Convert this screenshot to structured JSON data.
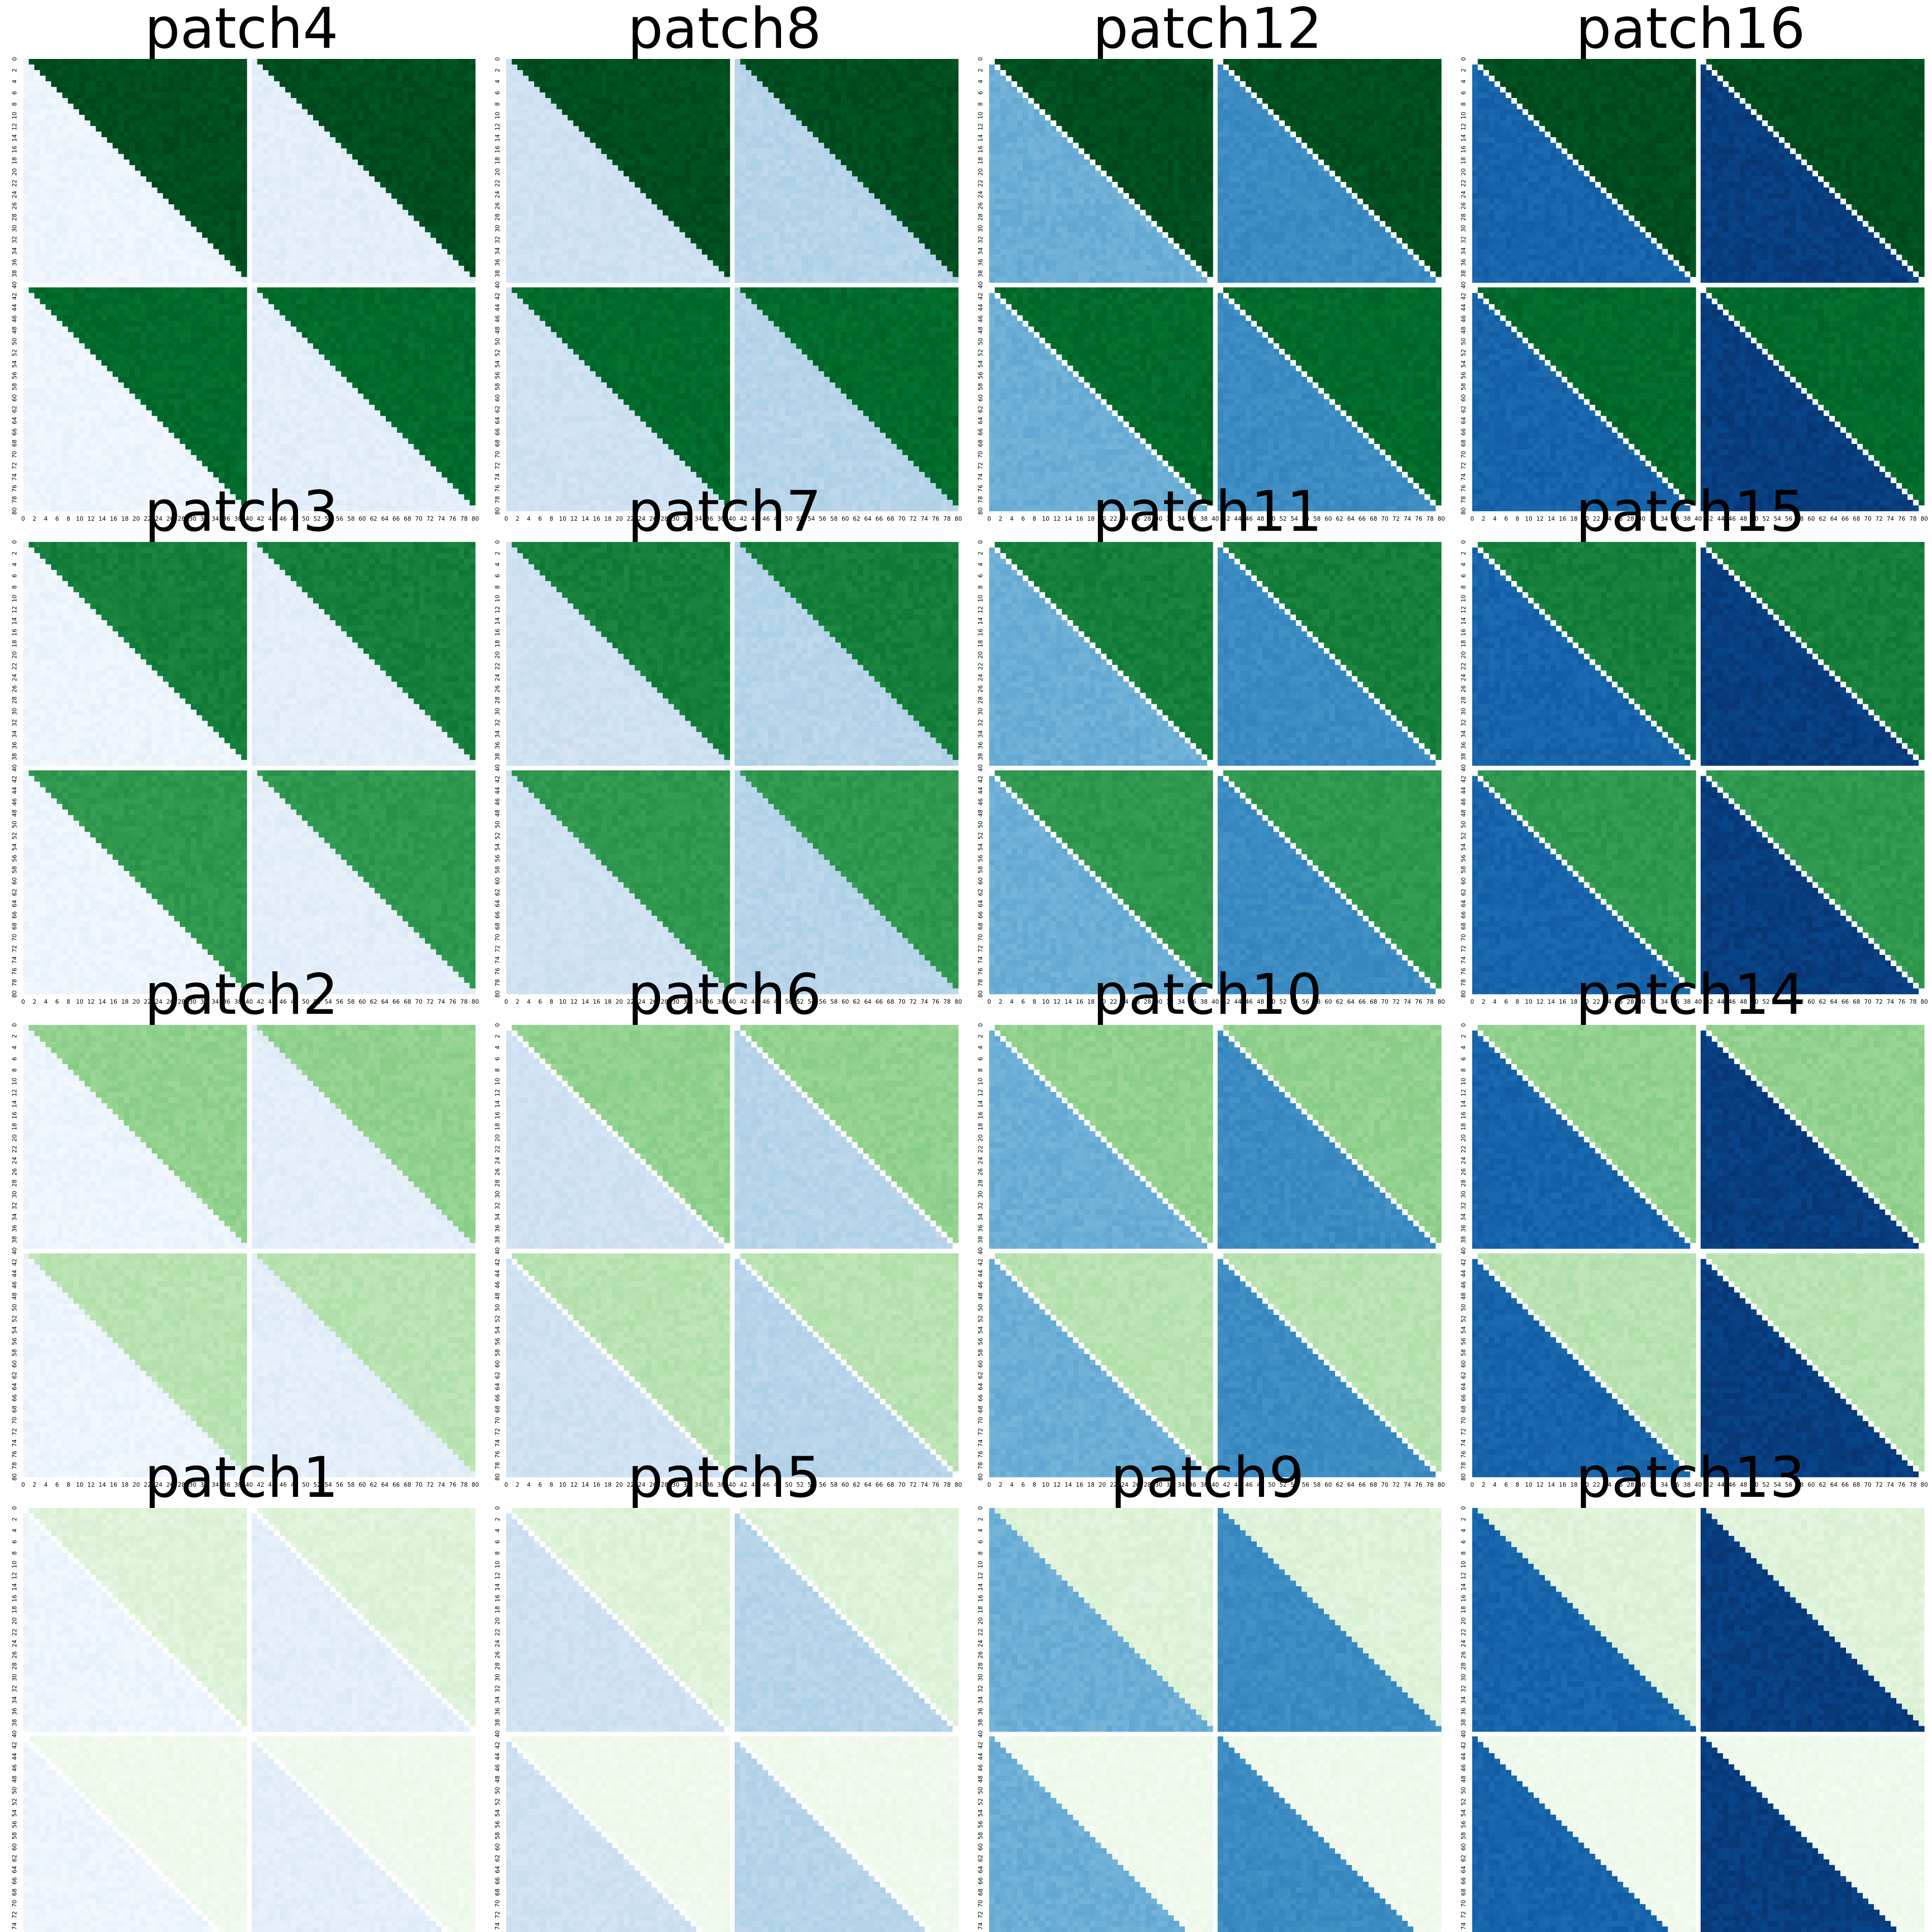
{
  "chart_data": {
    "type": "heatmap",
    "colormaps": {
      "upper_triangle": "Greens",
      "lower_triangle": "Blues"
    },
    "axis_ticks": {
      "x": [
        "0",
        "2",
        "4",
        "6",
        "8",
        "10",
        "12",
        "14",
        "16",
        "18",
        "20",
        "22",
        "24",
        "26",
        "28",
        "30",
        "32",
        "34",
        "36",
        "38",
        "40",
        "42",
        "44",
        "46",
        "48",
        "50",
        "52",
        "54",
        "56",
        "58",
        "60",
        "62",
        "64",
        "66",
        "68",
        "70",
        "72",
        "74",
        "76",
        "78",
        "80"
      ],
      "y": [
        "0",
        "2",
        "4",
        "6",
        "8",
        "10",
        "12",
        "14",
        "16",
        "18",
        "20",
        "22",
        "24",
        "26",
        "28",
        "30",
        "32",
        "34",
        "36",
        "38",
        "40",
        "42",
        "44",
        "46",
        "48",
        "50",
        "52",
        "54",
        "56",
        "58",
        "60",
        "62",
        "64",
        "66",
        "68",
        "70",
        "72",
        "74",
        "76",
        "78",
        "80"
      ]
    },
    "grid_order": [
      [
        "patch4",
        "patch8",
        "patch12",
        "patch16"
      ],
      [
        "patch3",
        "patch7",
        "patch11",
        "patch15"
      ],
      [
        "patch2",
        "patch6",
        "patch10",
        "patch14"
      ],
      [
        "patch1",
        "patch5",
        "patch9",
        "patch13"
      ]
    ],
    "panels": [
      {
        "title": "patch4",
        "diagonal_gap": false,
        "blue_level": [
          0.05,
          0.1,
          0.05,
          0.1
        ],
        "green_level": [
          0.97,
          0.97,
          0.88,
          0.88
        ]
      },
      {
        "title": "patch8",
        "diagonal_gap": false,
        "blue_level": [
          0.2,
          0.3,
          0.2,
          0.3
        ],
        "green_level": [
          0.97,
          0.97,
          0.88,
          0.88
        ]
      },
      {
        "title": "patch12",
        "diagonal_gap": true,
        "blue_level": [
          0.5,
          0.65,
          0.5,
          0.65
        ],
        "green_level": [
          0.97,
          0.97,
          0.88,
          0.88
        ]
      },
      {
        "title": "patch16",
        "diagonal_gap": true,
        "blue_level": [
          0.8,
          0.95,
          0.8,
          0.95
        ],
        "green_level": [
          0.97,
          0.97,
          0.88,
          0.88
        ]
      },
      {
        "title": "patch3",
        "diagonal_gap": false,
        "blue_level": [
          0.05,
          0.1,
          0.05,
          0.1
        ],
        "green_level": [
          0.8,
          0.8,
          0.7,
          0.7
        ]
      },
      {
        "title": "patch7",
        "diagonal_gap": false,
        "blue_level": [
          0.2,
          0.3,
          0.2,
          0.3
        ],
        "green_level": [
          0.8,
          0.8,
          0.7,
          0.7
        ]
      },
      {
        "title": "patch11",
        "diagonal_gap": true,
        "blue_level": [
          0.5,
          0.65,
          0.5,
          0.65
        ],
        "green_level": [
          0.8,
          0.8,
          0.7,
          0.7
        ]
      },
      {
        "title": "patch15",
        "diagonal_gap": true,
        "blue_level": [
          0.8,
          0.95,
          0.8,
          0.95
        ],
        "green_level": [
          0.8,
          0.8,
          0.7,
          0.7
        ]
      },
      {
        "title": "patch2",
        "diagonal_gap": false,
        "blue_level": [
          0.05,
          0.1,
          0.05,
          0.1
        ],
        "green_level": [
          0.42,
          0.42,
          0.3,
          0.3
        ]
      },
      {
        "title": "patch6",
        "diagonal_gap": true,
        "blue_level": [
          0.2,
          0.3,
          0.2,
          0.3
        ],
        "green_level": [
          0.42,
          0.42,
          0.3,
          0.3
        ]
      },
      {
        "title": "patch10",
        "diagonal_gap": true,
        "blue_level": [
          0.5,
          0.65,
          0.5,
          0.65
        ],
        "green_level": [
          0.42,
          0.42,
          0.3,
          0.3
        ]
      },
      {
        "title": "patch14",
        "diagonal_gap": true,
        "blue_level": [
          0.8,
          0.95,
          0.8,
          0.95
        ],
        "green_level": [
          0.42,
          0.42,
          0.3,
          0.3
        ]
      },
      {
        "title": "patch1",
        "diagonal_gap": true,
        "blue_level": [
          0.05,
          0.1,
          0.05,
          0.1
        ],
        "green_level": [
          0.15,
          0.15,
          0.05,
          0.05
        ]
      },
      {
        "title": "patch5",
        "diagonal_gap": true,
        "blue_level": [
          0.2,
          0.3,
          0.2,
          0.3
        ],
        "green_level": [
          0.15,
          0.15,
          0.05,
          0.05
        ]
      },
      {
        "title": "patch9",
        "diagonal_gap": false,
        "blue_level": [
          0.5,
          0.65,
          0.5,
          0.65
        ],
        "green_level": [
          0.15,
          0.15,
          0.05,
          0.05
        ]
      },
      {
        "title": "patch13",
        "diagonal_gap": false,
        "blue_level": [
          0.8,
          0.95,
          0.8,
          0.95
        ],
        "green_level": [
          0.15,
          0.15,
          0.05,
          0.05
        ]
      }
    ]
  }
}
